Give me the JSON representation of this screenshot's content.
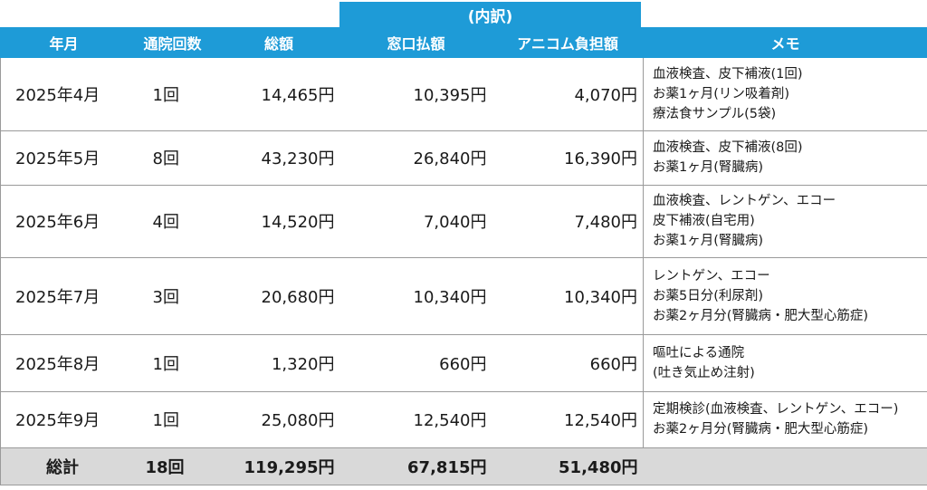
{
  "subheader": "(内訳)",
  "headers": {
    "month": "年月",
    "visits": "通院回数",
    "total": "総額",
    "window": "窓口払額",
    "anicom": "アニコム負担額",
    "memo": "メモ"
  },
  "rows": [
    {
      "month": "2025年4月",
      "visits": "1回",
      "total": "14,465円",
      "window": "10,395円",
      "anicom": "4,070円",
      "memo": [
        "血液検査、皮下補液(1回)",
        "お薬1ヶ月(リン吸着剤)",
        "療法食サンプル(5袋)"
      ]
    },
    {
      "month": "2025年5月",
      "visits": "8回",
      "total": "43,230円",
      "window": "26,840円",
      "anicom": "16,390円",
      "memo": [
        "血液検査、皮下補液(8回)",
        "お薬1ヶ月(腎臓病)"
      ]
    },
    {
      "month": "2025年6月",
      "visits": "4回",
      "total": "14,520円",
      "window": "7,040円",
      "anicom": "7,480円",
      "memo": [
        "血液検査、レントゲン、エコー",
        "皮下補液(自宅用)",
        "お薬1ヶ月(腎臓病)"
      ]
    },
    {
      "month": "2025年7月",
      "visits": "3回",
      "total": "20,680円",
      "window": "10,340円",
      "anicom": "10,340円",
      "memo": [
        "レントゲン、エコー",
        "お薬5日分(利尿剤)",
        "お薬2ヶ月分(腎臓病・肥大型心筋症)"
      ]
    },
    {
      "month": "2025年8月",
      "visits": "1回",
      "total": "1,320円",
      "window": "660円",
      "anicom": "660円",
      "memo": [
        "嘔吐による通院",
        "(吐き気止め注射)"
      ]
    },
    {
      "month": "2025年9月",
      "visits": "1回",
      "total": "25,080円",
      "window": "12,540円",
      "anicom": "12,540円",
      "memo": [
        "定期検診(血液検査、レントゲン、エコー)",
        "お薬2ヶ月分(腎臓病・肥大型心筋症)"
      ]
    }
  ],
  "totals": {
    "label": "総計",
    "visits": "18回",
    "total": "119,295円",
    "window": "67,815円",
    "anicom": "51,480円"
  }
}
